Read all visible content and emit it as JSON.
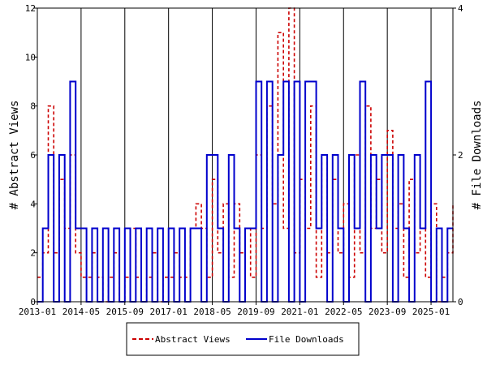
{
  "chart_data": {
    "type": "line",
    "ylabel": "# Abstract Views",
    "y2label": "# File Downloads",
    "ylim": [
      0,
      12
    ],
    "y2lim": [
      0,
      4
    ],
    "yticks": [
      0,
      2,
      4,
      6,
      8,
      10,
      12
    ],
    "y2ticks": [
      0,
      2,
      4
    ],
    "xlim": [
      "2013-01",
      "2025-09"
    ],
    "xticks": [
      "2013-01",
      "2014-05",
      "2015-09",
      "2017-01",
      "2018-05",
      "2019-09",
      "2021-01",
      "2022-05",
      "2023-09",
      "2025-01"
    ],
    "legend_position": "bottom",
    "grid": "vertical",
    "series": [
      {
        "name": "Abstract Views",
        "axis": "left",
        "color": "#cc0000",
        "style": "dashed",
        "x": [
          "2013-01",
          "2013-03",
          "2013-05",
          "2013-07",
          "2013-09",
          "2013-11",
          "2014-01",
          "2014-03",
          "2014-05",
          "2014-07",
          "2014-09",
          "2014-11",
          "2015-01",
          "2015-03",
          "2015-05",
          "2015-07",
          "2015-09",
          "2015-11",
          "2016-01",
          "2016-03",
          "2016-05",
          "2016-07",
          "2016-09",
          "2016-11",
          "2017-01",
          "2017-03",
          "2017-05",
          "2017-07",
          "2017-09",
          "2017-11",
          "2018-01",
          "2018-03",
          "2018-05",
          "2018-07",
          "2018-09",
          "2018-11",
          "2019-01",
          "2019-03",
          "2019-05",
          "2019-07",
          "2019-09",
          "2019-11",
          "2020-01",
          "2020-03",
          "2020-05",
          "2020-07",
          "2020-09",
          "2020-11",
          "2021-01",
          "2021-03",
          "2021-05",
          "2021-07",
          "2021-09",
          "2021-11",
          "2022-01",
          "2022-03",
          "2022-05",
          "2022-07",
          "2022-09",
          "2022-11",
          "2023-01",
          "2023-03",
          "2023-05",
          "2023-07",
          "2023-09",
          "2023-11",
          "2024-01",
          "2024-03",
          "2024-05",
          "2024-07",
          "2024-09",
          "2024-11",
          "2025-01",
          "2025-03",
          "2025-05",
          "2025-07",
          "2025-09"
        ],
        "values": [
          1,
          2,
          8,
          2,
          5,
          3,
          6,
          2,
          1,
          1,
          2,
          1,
          0,
          1,
          2,
          0,
          1,
          3,
          1,
          0,
          1,
          2,
          0,
          1,
          1,
          2,
          1,
          1,
          3,
          4,
          3,
          1,
          5,
          2,
          4,
          1,
          4,
          2,
          3,
          1,
          6,
          3,
          8,
          4,
          11,
          3,
          12,
          2,
          5,
          3,
          8,
          1,
          6,
          2,
          5,
          2,
          4,
          1,
          6,
          2,
          8,
          3,
          5,
          2,
          7,
          3,
          4,
          1,
          5,
          2,
          3,
          1,
          4,
          0,
          1,
          2,
          4
        ]
      },
      {
        "name": "File Downloads",
        "axis": "right",
        "color": "#0000cc",
        "style": "solid",
        "x": [
          "2013-01",
          "2013-03",
          "2013-05",
          "2013-07",
          "2013-09",
          "2013-11",
          "2014-01",
          "2014-03",
          "2014-05",
          "2014-07",
          "2014-09",
          "2014-11",
          "2015-01",
          "2015-03",
          "2015-05",
          "2015-07",
          "2015-09",
          "2015-11",
          "2016-01",
          "2016-03",
          "2016-05",
          "2016-07",
          "2016-09",
          "2016-11",
          "2017-01",
          "2017-03",
          "2017-05",
          "2017-07",
          "2017-09",
          "2017-11",
          "2018-01",
          "2018-03",
          "2018-05",
          "2018-07",
          "2018-09",
          "2018-11",
          "2019-01",
          "2019-03",
          "2019-05",
          "2019-07",
          "2019-09",
          "2019-11",
          "2020-01",
          "2020-03",
          "2020-05",
          "2020-07",
          "2020-09",
          "2020-11",
          "2021-01",
          "2021-03",
          "2021-05",
          "2021-07",
          "2021-09",
          "2021-11",
          "2022-01",
          "2022-03",
          "2022-05",
          "2022-07",
          "2022-09",
          "2022-11",
          "2023-01",
          "2023-03",
          "2023-05",
          "2023-07",
          "2023-09",
          "2023-11",
          "2024-01",
          "2024-03",
          "2024-05",
          "2024-07",
          "2024-09",
          "2024-11",
          "2025-01",
          "2025-03",
          "2025-05",
          "2025-07",
          "2025-09"
        ],
        "values": [
          0,
          1,
          2,
          0,
          2,
          0,
          3,
          1,
          1,
          0,
          1,
          0,
          1,
          0,
          1,
          0,
          1,
          0,
          1,
          0,
          1,
          0,
          1,
          0,
          1,
          0,
          1,
          0,
          1,
          1,
          0,
          2,
          2,
          1,
          0,
          2,
          1,
          0,
          1,
          1,
          3,
          0,
          3,
          0,
          2,
          3,
          0,
          3,
          0,
          3,
          3,
          1,
          2,
          0,
          2,
          1,
          0,
          2,
          1,
          3,
          0,
          2,
          1,
          2,
          2,
          0,
          2,
          1,
          0,
          2,
          1,
          3,
          0,
          1,
          0,
          1,
          1
        ]
      }
    ]
  }
}
